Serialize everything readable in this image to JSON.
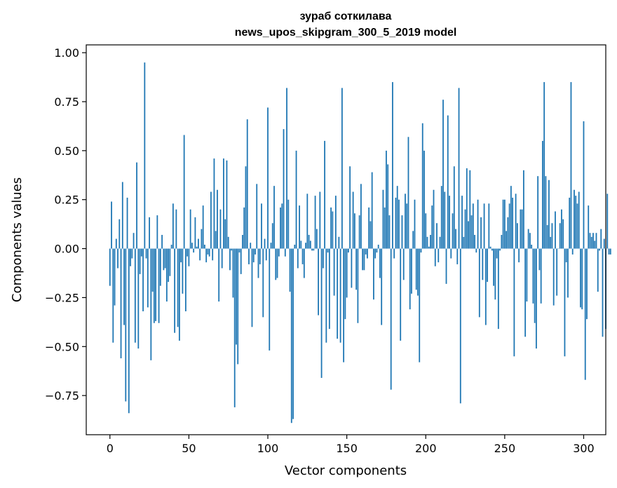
{
  "chart_data": {
    "type": "bar",
    "title": [
      "зураб соткилава",
      "news_upos_skipgram_300_5_2019 model"
    ],
    "xlabel": "Vector components",
    "ylabel": "Components values",
    "xlim": [
      -15,
      314
    ],
    "ylim": [
      -0.95,
      1.04
    ],
    "xticks": [
      0,
      50,
      100,
      150,
      200,
      250,
      300
    ],
    "yticks": [
      -0.75,
      -0.5,
      -0.25,
      0.0,
      0.25,
      0.5,
      0.75,
      1.0
    ],
    "ytick_labels": [
      "−0.75",
      "−0.50",
      "−0.25",
      "0.00",
      "0.25",
      "0.50",
      "0.75",
      "1.00"
    ],
    "bar_color": "#1f77b4",
    "grid": false,
    "values": [
      -0.19,
      0.24,
      -0.48,
      -0.29,
      0.05,
      -0.1,
      0.15,
      -0.56,
      0.34,
      -0.39,
      -0.78,
      0.26,
      -0.84,
      -0.09,
      -0.05,
      0.08,
      -0.48,
      0.44,
      -0.51,
      -0.13,
      -0.04,
      -0.32,
      0.95,
      -0.05,
      -0.3,
      0.16,
      -0.57,
      -0.22,
      -0.38,
      -0.37,
      0.17,
      -0.38,
      -0.19,
      0.07,
      -0.11,
      -0.1,
      -0.27,
      -0.17,
      -0.14,
      0.02,
      0.23,
      -0.43,
      0.2,
      -0.4,
      -0.47,
      -0.07,
      -0.23,
      0.58,
      -0.32,
      -0.04,
      -0.09,
      0.2,
      0.03,
      -0.02,
      0.16,
      0.01,
      0.05,
      -0.06,
      0.1,
      0.22,
      0.02,
      -0.07,
      -0.03,
      -0.04,
      0.29,
      -0.06,
      0.46,
      0.09,
      0.3,
      -0.27,
      0.2,
      -0.1,
      0.46,
      0.15,
      0.45,
      0.06,
      -0.11,
      -0.01,
      -0.25,
      -0.81,
      -0.49,
      -0.59,
      -0.02,
      -0.13,
      0.07,
      0.21,
      0.42,
      0.66,
      -0.08,
      0.03,
      -0.4,
      -0.07,
      -0.03,
      0.33,
      -0.15,
      -0.08,
      0.23,
      -0.35,
      0.05,
      -0.06,
      0.72,
      -0.52,
      0.03,
      0.13,
      0.32,
      -0.16,
      -0.15,
      -0.04,
      0.21,
      0.23,
      0.61,
      -0.04,
      0.82,
      0.25,
      -0.22,
      -0.89,
      -0.87,
      0.02,
      0.5,
      -0.1,
      0.22,
      0.04,
      -0.08,
      -0.15,
      0.03,
      0.28,
      0.07,
      0.04,
      -0.01,
      -0.01,
      0.27,
      0.1,
      -0.34,
      0.29,
      -0.66,
      -0.1,
      0.55,
      -0.48,
      -0.02,
      -0.41,
      0.21,
      0.19,
      -0.24,
      0.27,
      -0.46,
      0.06,
      -0.48,
      0.82,
      -0.58,
      -0.36,
      -0.25,
      -0.02,
      0.42,
      -0.2,
      0.29,
      0.18,
      -0.21,
      -0.38,
      0.17,
      0.33,
      -0.11,
      -0.11,
      -0.03,
      -0.05,
      0.21,
      0.14,
      0.39,
      -0.26,
      -0.05,
      -0.02,
      0.02,
      -0.15,
      -0.39,
      0.3,
      0.21,
      0.5,
      0.43,
      0.17,
      -0.72,
      0.85,
      -0.05,
      0.26,
      0.32,
      0.25,
      -0.47,
      0.17,
      -0.16,
      0.28,
      0.23,
      0.57,
      -0.31,
      -0.23,
      0.09,
      0.25,
      -0.21,
      -0.24,
      -0.58,
      -0.02,
      0.64,
      0.5,
      0.18,
      0.06,
      0.01,
      0.07,
      0.22,
      0.3,
      -0.09,
      0.13,
      -0.07,
      0.06,
      0.32,
      0.76,
      0.29,
      -0.18,
      0.68,
      0.27,
      -0.05,
      0.18,
      0.42,
      0.1,
      -0.08,
      0.82,
      -0.79,
      0.27,
      0.06,
      0.2,
      0.41,
      0.14,
      0.4,
      0.17,
      0.23,
      0.07,
      -0.02,
      0.25,
      -0.35,
      0.16,
      -0.16,
      0.23,
      -0.39,
      -0.17,
      0.23,
      0.01,
      -0.01,
      -0.19,
      -0.26,
      -0.05,
      -0.41,
      -0.01,
      0.07,
      0.25,
      0.25,
      0.09,
      0.16,
      0.23,
      0.32,
      0.26,
      -0.55,
      0.28,
      0.13,
      -0.07,
      0.2,
      0.2,
      0.4,
      -0.45,
      -0.27,
      0.1,
      0.08,
      0.02,
      -0.28,
      -0.38,
      -0.51,
      0.37,
      -0.11,
      -0.28,
      0.55,
      0.85,
      0.37,
      0.12,
      0.35,
      0.06,
      0.13,
      -0.29,
      0.19,
      -0.24,
      0.0,
      0.13,
      0.2,
      0.15,
      -0.55,
      -0.07,
      -0.25,
      0.26,
      0.85,
      -0.03,
      0.3,
      0.27,
      0.23,
      0.29,
      -0.3,
      -0.31,
      0.65,
      -0.67,
      -0.36,
      0.22,
      0.08,
      0.06,
      0.08,
      0.04,
      0.08,
      -0.22,
      -0.01,
      0.1,
      -0.45,
      0.05,
      -0.41,
      0.28,
      -0.03,
      -0.03
    ]
  }
}
